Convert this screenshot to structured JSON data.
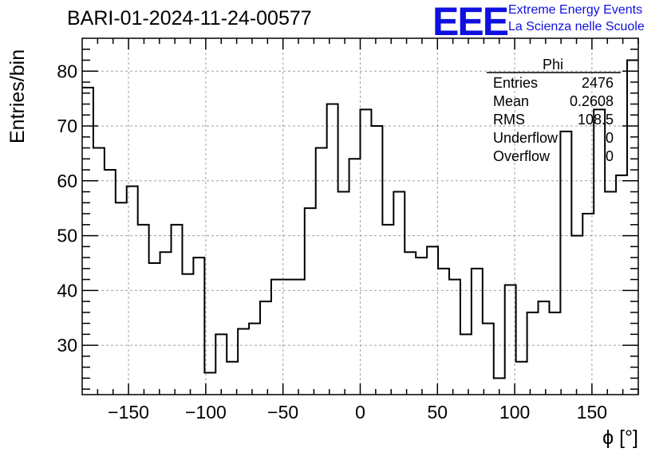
{
  "header": {
    "title": "BARI-01-2024-11-24-00577"
  },
  "logo": {
    "mark": "EEE",
    "line1": "Extreme Energy Events",
    "line2": "La Scienza nelle Scuole",
    "color": "#1010e0"
  },
  "stats": {
    "name": "Phi",
    "rows": [
      {
        "label": "Entries",
        "value": "2476"
      },
      {
        "label": "Mean",
        "value": "0.2608"
      },
      {
        "label": "RMS",
        "value": "108.5"
      },
      {
        "label": "Underflow",
        "value": "0"
      },
      {
        "label": "Overflow",
        "value": "0"
      }
    ]
  },
  "chart_data": {
    "type": "histogram",
    "xlabel": "ϕ [°]",
    "ylabel": "Entries/bin",
    "xlim": [
      -180,
      180
    ],
    "ylim": [
      21,
      86
    ],
    "bin_width": 7.2,
    "bin_edges_start": -180,
    "values": [
      77,
      66,
      62,
      56,
      59,
      52,
      45,
      47,
      52,
      43,
      46,
      25,
      32,
      27,
      33,
      34,
      38,
      42,
      42,
      42,
      55,
      66,
      74,
      58,
      64,
      73,
      70,
      52,
      58,
      47,
      46,
      48,
      44,
      42,
      32,
      44,
      34,
      24,
      41,
      27,
      36,
      38,
      36,
      69,
      50,
      54,
      73,
      58,
      61,
      82
    ],
    "x_ticks": [
      -150,
      -100,
      -50,
      0,
      50,
      100,
      150
    ],
    "x_tick_labels": [
      "−150",
      "−100",
      "−50",
      "0",
      "50",
      "100",
      "150"
    ],
    "y_ticks": [
      30,
      40,
      50,
      60,
      70,
      80
    ],
    "y_tick_labels": [
      "30",
      "40",
      "50",
      "60",
      "70",
      "80"
    ],
    "grid": true,
    "line_color": "#000000"
  }
}
